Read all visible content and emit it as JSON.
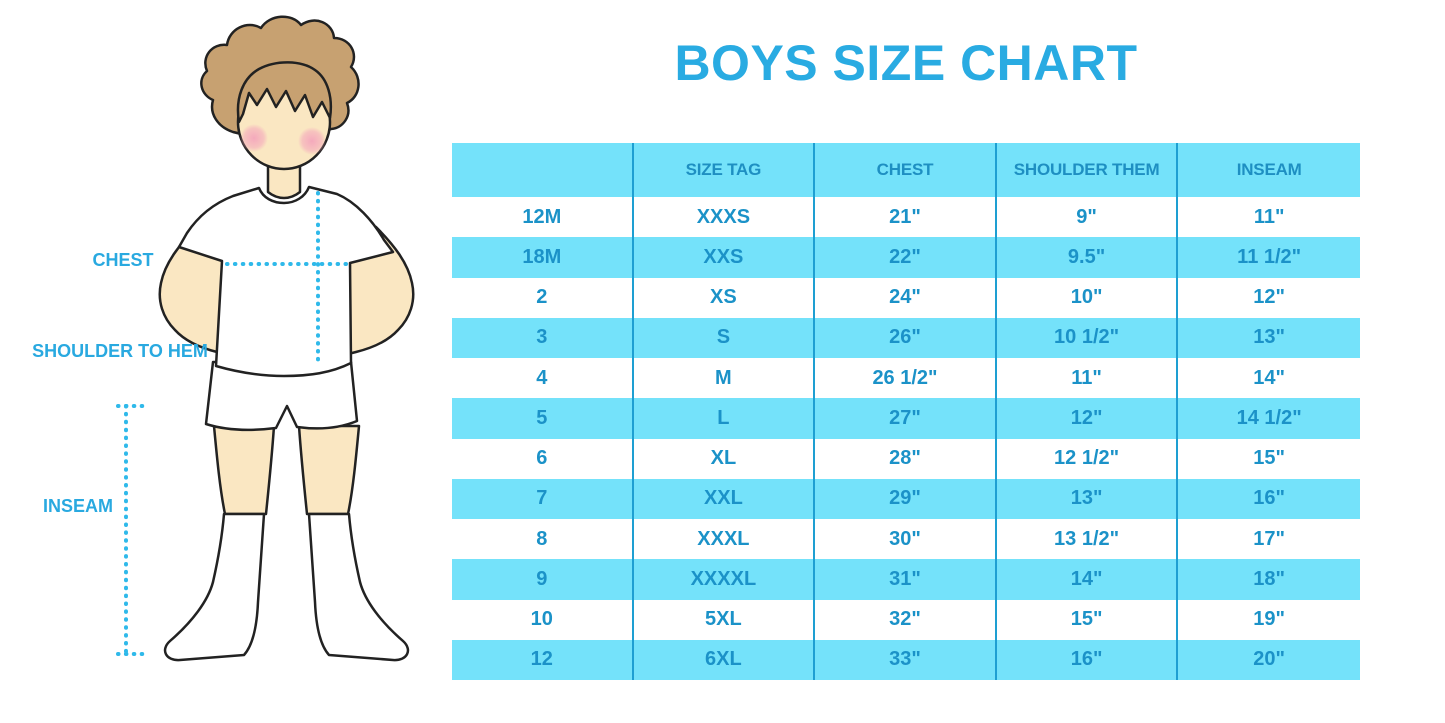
{
  "title": "BOYS SIZE CHART",
  "figure_labels": {
    "chest": "CHEST",
    "shoulder_to_hem": "SHOULDER TO HEM",
    "inseam": "INSEAM"
  },
  "colors": {
    "title_blue": "#29ABE2",
    "band_blue": "#74E2FA",
    "divider_blue": "#1E9FD2",
    "table_text_blue": "#1B92C8",
    "dotted_line_cyan": "#2FB9EA",
    "skin": "#FAE7C2",
    "hair_brown": "#C7A171",
    "cheek_pink": "#F4A6BC"
  },
  "chart_data": {
    "type": "table",
    "title": "BOYS SIZE CHART",
    "columns": [
      "",
      "SIZE TAG",
      "CHEST",
      "SHOULDER THEM",
      "INSEAM"
    ],
    "rows": [
      [
        "12M",
        "XXXS",
        "21\"",
        "9\"",
        "11\""
      ],
      [
        "18M",
        "XXS",
        "22\"",
        "9.5\"",
        "11 1/2\""
      ],
      [
        "2",
        "XS",
        "24\"",
        "10\"",
        "12\""
      ],
      [
        "3",
        "S",
        "26\"",
        "10 1/2\"",
        "13\""
      ],
      [
        "4",
        "M",
        "26 1/2\"",
        "11\"",
        "14\""
      ],
      [
        "5",
        "L",
        "27\"",
        "12\"",
        "14 1/2\""
      ],
      [
        "6",
        "XL",
        "28\"",
        "12 1/2\"",
        "15\""
      ],
      [
        "7",
        "XXL",
        "29\"",
        "13\"",
        "16\""
      ],
      [
        "8",
        "XXXL",
        "30\"",
        "13 1/2\"",
        "17\""
      ],
      [
        "9",
        "XXXXL",
        "31\"",
        "14\"",
        "18\""
      ],
      [
        "10",
        "5XL",
        "32\"",
        "15\"",
        "19\""
      ],
      [
        "12",
        "6XL",
        "33\"",
        "16\"",
        "20\""
      ]
    ]
  }
}
